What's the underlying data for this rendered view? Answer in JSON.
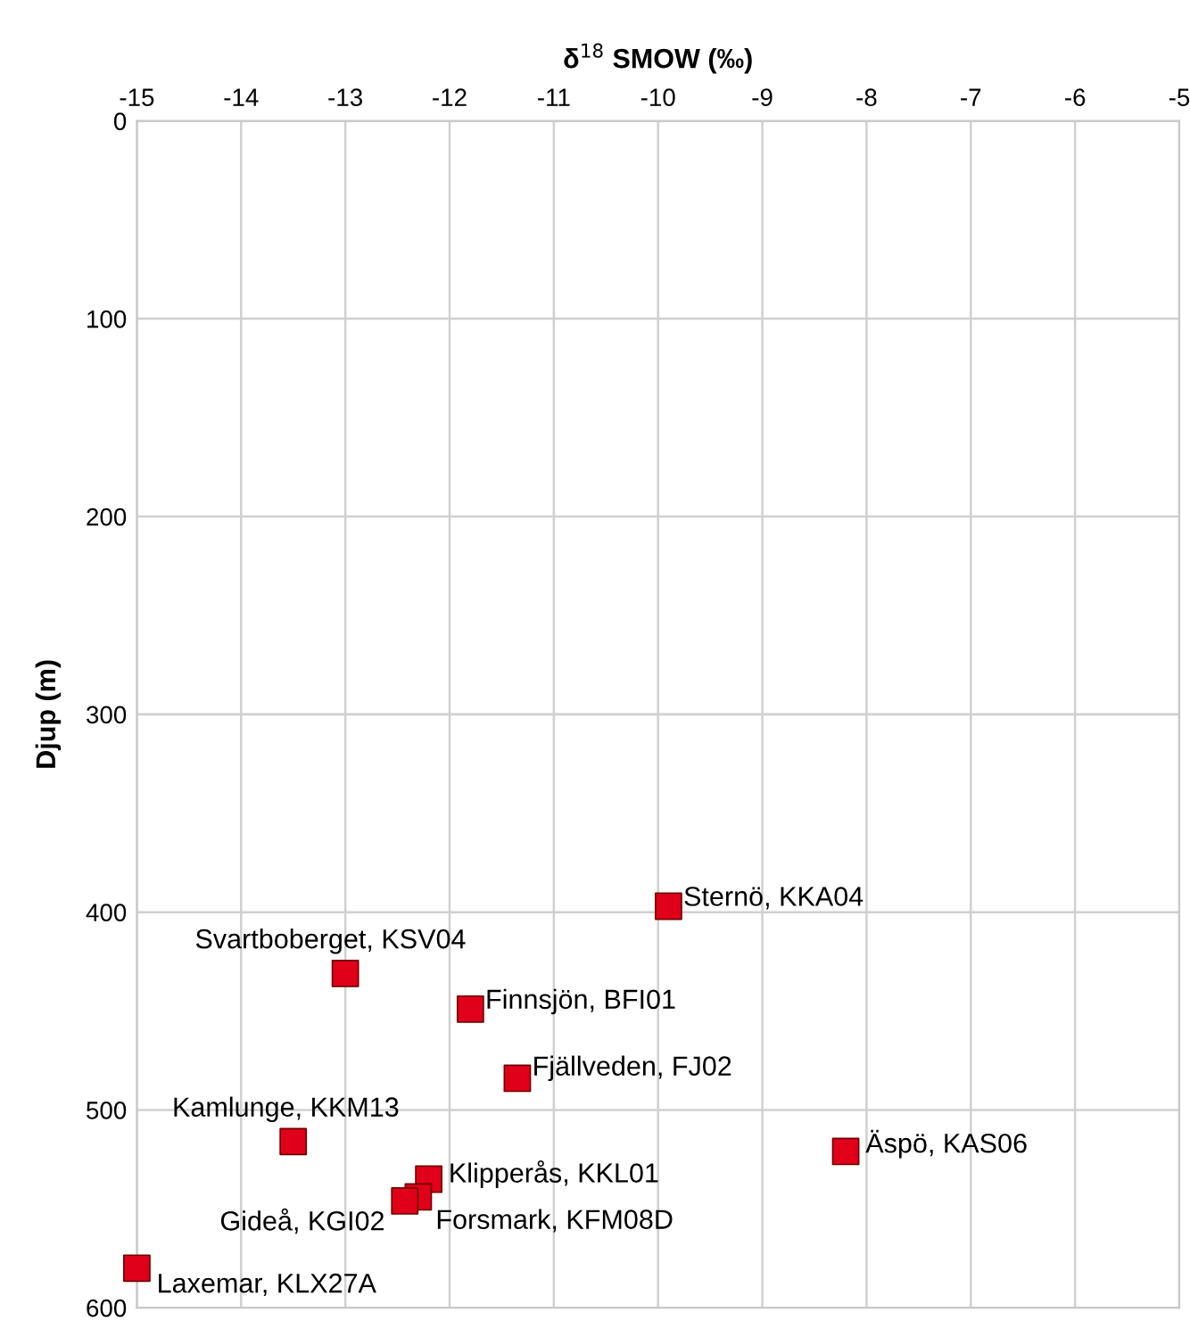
{
  "chart_data": {
    "type": "scatter",
    "xlabel": "δ$^{18}$ SMOW (‰)",
    "ylabel": "Djup (m)",
    "x": [
      -9.9,
      -13.0,
      -11.8,
      -11.35,
      -13.5,
      -8.2,
      -12.2,
      -12.3,
      -12.43,
      -15.0
    ],
    "values": [
      397,
      431,
      449,
      484,
      516,
      521,
      535,
      544,
      546,
      580
    ],
    "color": "#e0001a",
    "marker": "square",
    "grid": true,
    "xlim": [
      -15,
      -5
    ],
    "xticks": [
      -15,
      -14,
      -13,
      -12,
      -11,
      -10,
      -9,
      -8,
      -7,
      -6,
      -5
    ],
    "ylim": [
      600,
      0
    ],
    "yticks": [
      0,
      100,
      200,
      300,
      400,
      500,
      600
    ],
    "annotations": [
      {
        "text": "Sternö, KKA04",
        "x": -9.9,
        "y": 397
      },
      {
        "text": "Svartboberget, KSV04",
        "x": -13.0,
        "y": 431
      },
      {
        "text": "Finnsjön, BFI01",
        "x": -11.8,
        "y": 449
      },
      {
        "text": "Fjällveden, FJ02",
        "x": -11.35,
        "y": 484
      },
      {
        "text": "Kamlunge, KKM13",
        "x": -13.5,
        "y": 516
      },
      {
        "text": "Äspö, KAS06",
        "x": -8.2,
        "y": 521
      },
      {
        "text": "Klipperås, KKL01",
        "x": -12.2,
        "y": 535
      },
      {
        "text": "Forsmark, KFM08D",
        "x": -12.3,
        "y": 544
      },
      {
        "text": "Gideå, KGI02",
        "x": -12.43,
        "y": 546
      },
      {
        "text": "Laxemar, KLX27A",
        "x": -15.0,
        "y": 580
      }
    ]
  }
}
